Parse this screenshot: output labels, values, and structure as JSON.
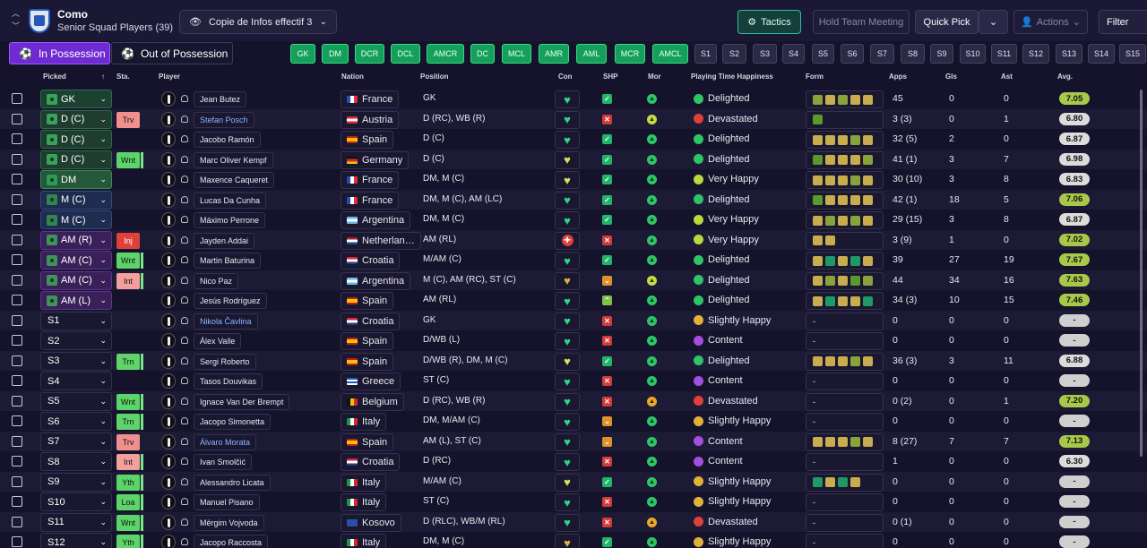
{
  "header": {
    "club": "Como",
    "subtitle": "Senior Squad Players (39)",
    "view": "Copie de Infos effectif 3",
    "tactics": "Tactics",
    "team_meeting": "Hold Team Meeting",
    "quick_pick": "Quick Pick",
    "actions": "Actions",
    "filter": "Filter"
  },
  "tabs": {
    "in": "In Possession",
    "out": "Out of Possession"
  },
  "pos_filters": [
    "GK",
    "DM",
    "DCR",
    "DCL",
    "AMCR",
    "DC",
    "MCL",
    "AMR",
    "AML",
    "MCR",
    "AMCL"
  ],
  "sub_filters": [
    "S1",
    "S2",
    "S3",
    "S4",
    "S5",
    "S6",
    "S7",
    "S8",
    "S9",
    "S10",
    "S11",
    "S12",
    "S13",
    "S14",
    "S15"
  ],
  "columns": {
    "picked": "Picked",
    "sta": "Sta.",
    "player": "Player",
    "nation": "Nation",
    "position": "Position",
    "con": "Con",
    "shp": "SHP",
    "mor": "Mor",
    "pth": "Playing Time Happiness",
    "form": "Form",
    "apps": "Apps",
    "gls": "Gls",
    "ast": "Ast",
    "avg": "Avg."
  },
  "players": [
    {
      "picked": "GK",
      "ptype": "gk",
      "sta": "",
      "name": "Jean Butez",
      "link": false,
      "nation": "France",
      "flag": "fr",
      "position": "GK",
      "con": "g",
      "shp": "ok",
      "mor": "g",
      "happy": "Delighted",
      "hic": "delighted",
      "form": "babaa",
      "apps": "45",
      "gls": "0",
      "ast": "0",
      "avg": "7.05",
      "avgc": "hi"
    },
    {
      "picked": "D (C)",
      "ptype": "def",
      "sta": "Trv",
      "stc": "trv",
      "name": "Stefan Posch",
      "link": true,
      "nation": "Austria",
      "flag": "at",
      "position": "D (RC), WB (R)",
      "con": "g",
      "shp": "bad",
      "mor": "y",
      "happy": "Devastated",
      "hic": "devastated",
      "form": "c",
      "apps": "3 (3)",
      "gls": "0",
      "ast": "1",
      "avg": "6.80",
      "avgc": "lo"
    },
    {
      "picked": "D (C)",
      "ptype": "def",
      "sta": "",
      "name": "Jacobo Ramón",
      "link": false,
      "nation": "Spain",
      "flag": "es",
      "position": "D (C)",
      "con": "g",
      "shp": "ok",
      "mor": "g",
      "happy": "Delighted",
      "hic": "delighted",
      "form": "aaaba",
      "apps": "32 (5)",
      "gls": "2",
      "ast": "0",
      "avg": "6.87",
      "avgc": "lo"
    },
    {
      "picked": "D (C)",
      "ptype": "def",
      "sta": "Wnt",
      "stc": "wnt",
      "name": "Marc Oliver Kempf",
      "link": false,
      "nation": "Germany",
      "flag": "de",
      "position": "D (C)",
      "con": "y",
      "shp": "ok",
      "mor": "g",
      "happy": "Delighted",
      "hic": "delighted",
      "form": "caaab",
      "apps": "41 (1)",
      "gls": "3",
      "ast": "7",
      "avg": "6.98",
      "avgc": "lo"
    },
    {
      "picked": "DM",
      "ptype": "dm",
      "sta": "",
      "name": "Maxence Caqueret",
      "link": false,
      "nation": "France",
      "flag": "fr",
      "position": "DM, M (C)",
      "con": "y",
      "shp": "ok",
      "mor": "g",
      "happy": "Very Happy",
      "hic": "veryhappy",
      "form": "aaaba",
      "apps": "30 (10)",
      "gls": "3",
      "ast": "8",
      "avg": "6.83",
      "avgc": "lo"
    },
    {
      "picked": "M (C)",
      "ptype": "mid",
      "sta": "",
      "name": "Lucas Da Cunha",
      "link": false,
      "nation": "France",
      "flag": "fr",
      "position": "DM, M (C), AM (LC)",
      "con": "g",
      "shp": "ok",
      "mor": "g",
      "happy": "Delighted",
      "hic": "delighted",
      "form": "caaaa",
      "apps": "42 (1)",
      "gls": "18",
      "ast": "5",
      "avg": "7.06",
      "avgc": "hi"
    },
    {
      "picked": "M (C)",
      "ptype": "mid",
      "sta": "",
      "name": "Máximo Perrone",
      "link": false,
      "nation": "Argentina",
      "flag": "ar",
      "position": "DM, M (C)",
      "con": "g",
      "shp": "ok",
      "mor": "g",
      "happy": "Very Happy",
      "hic": "veryhappy",
      "form": "ababa",
      "apps": "29 (15)",
      "gls": "3",
      "ast": "8",
      "avg": "6.87",
      "avgc": "lo"
    },
    {
      "picked": "AM (R)",
      "ptype": "am",
      "sta": "Inj",
      "stc": "inj",
      "name": "Jayden Addai",
      "link": false,
      "nation": "Netherlan…",
      "flag": "nl",
      "position": "AM (RL)",
      "con": "r",
      "shp": "bad",
      "mor": "g",
      "happy": "Very Happy",
      "hic": "veryhappy",
      "form": "aa",
      "apps": "3 (9)",
      "gls": "1",
      "ast": "0",
      "avg": "7.02",
      "avgc": "hi"
    },
    {
      "picked": "AM (C)",
      "ptype": "am",
      "sta": "Wnt",
      "stc": "wnt",
      "name": "Martin Baturina",
      "link": false,
      "nation": "Croatia",
      "flag": "hr",
      "position": "M/AM (C)",
      "con": "g",
      "shp": "ok",
      "mor": "g",
      "happy": "Delighted",
      "hic": "delighted",
      "form": "adada",
      "apps": "39",
      "gls": "27",
      "ast": "19",
      "avg": "7.67",
      "avgc": "hi"
    },
    {
      "picked": "AM (C)",
      "ptype": "am",
      "sta": "Int",
      "stc": "int",
      "name": "Nico Paz",
      "link": false,
      "nation": "Argentina",
      "flag": "ar",
      "position": "M (C), AM (RC), ST (C)",
      "con": "w",
      "shp": "mid",
      "mor": "y",
      "happy": "Delighted",
      "hic": "delighted",
      "form": "abacb",
      "apps": "44",
      "gls": "34",
      "ast": "16",
      "avg": "7.63",
      "avgc": "hi"
    },
    {
      "picked": "AM (L)",
      "ptype": "am",
      "sta": "",
      "name": "Jesús Rodríguez",
      "link": false,
      "nation": "Spain",
      "flag": "es",
      "position": "AM (RL)",
      "con": "g",
      "shp": "up",
      "mor": "g",
      "happy": "Delighted",
      "hic": "delighted",
      "form": "adaad",
      "apps": "34 (3)",
      "gls": "10",
      "ast": "15",
      "avg": "7.46",
      "avgc": "hi"
    },
    {
      "picked": "S1",
      "ptype": "sub",
      "sta": "",
      "name": "Nikola Čavlina",
      "link": true,
      "nation": "Croatia",
      "flag": "hr",
      "position": "GK",
      "con": "g",
      "shp": "bad",
      "mor": "g",
      "happy": "Slightly Happy",
      "hic": "slightly",
      "form": "-",
      "apps": "0",
      "gls": "0",
      "ast": "0",
      "avg": "-",
      "avgc": "na"
    },
    {
      "picked": "S2",
      "ptype": "sub",
      "sta": "",
      "name": "Álex Valle",
      "link": false,
      "nation": "Spain",
      "flag": "es",
      "position": "D/WB (L)",
      "con": "g",
      "shp": "bad",
      "mor": "g",
      "happy": "Content",
      "hic": "content",
      "form": "-",
      "apps": "0",
      "gls": "0",
      "ast": "0",
      "avg": "-",
      "avgc": "na"
    },
    {
      "picked": "S3",
      "ptype": "sub",
      "sta": "Trn",
      "stc": "trn",
      "name": "Sergi Roberto",
      "link": false,
      "nation": "Spain",
      "flag": "es",
      "position": "D/WB (R), DM, M (C)",
      "con": "y",
      "shp": "ok",
      "mor": "g",
      "happy": "Delighted",
      "hic": "delighted",
      "form": "aaaba",
      "apps": "36 (3)",
      "gls": "3",
      "ast": "11",
      "avg": "6.88",
      "avgc": "lo"
    },
    {
      "picked": "S4",
      "ptype": "sub",
      "sta": "",
      "name": "Tasos Douvikas",
      "link": false,
      "nation": "Greece",
      "flag": "gr",
      "position": "ST (C)",
      "con": "g",
      "shp": "bad",
      "mor": "g",
      "happy": "Content",
      "hic": "content",
      "form": "-",
      "apps": "0",
      "gls": "0",
      "ast": "0",
      "avg": "-",
      "avgc": "na"
    },
    {
      "picked": "S5",
      "ptype": "sub",
      "sta": "Wnt",
      "stc": "wnt",
      "name": "Ignace Van Der Brempt",
      "link": false,
      "nation": "Belgium",
      "flag": "be",
      "position": "D (RC), WB (R)",
      "con": "g",
      "shp": "bad",
      "mor": "o",
      "happy": "Devastated",
      "hic": "devastated",
      "form": "-",
      "apps": "0 (2)",
      "gls": "0",
      "ast": "1",
      "avg": "7.20",
      "avgc": "hi"
    },
    {
      "picked": "S6",
      "ptype": "sub",
      "sta": "Trn",
      "stc": "trn",
      "name": "Jacopo Simonetta",
      "link": false,
      "nation": "Italy",
      "flag": "it",
      "position": "DM, M/AM (C)",
      "con": "g",
      "shp": "mid",
      "mor": "g",
      "happy": "Slightly Happy",
      "hic": "slightly",
      "form": "-",
      "apps": "0",
      "gls": "0",
      "ast": "0",
      "avg": "-",
      "avgc": "na"
    },
    {
      "picked": "S7",
      "ptype": "sub",
      "sta": "Trv",
      "stc": "trv",
      "name": "Álvaro Morata",
      "link": true,
      "nation": "Spain",
      "flag": "es",
      "position": "AM (L), ST (C)",
      "con": "g",
      "shp": "mid",
      "mor": "g",
      "happy": "Content",
      "hic": "content",
      "form": "aaaba",
      "apps": "8 (27)",
      "gls": "7",
      "ast": "7",
      "avg": "7.13",
      "avgc": "hi"
    },
    {
      "picked": "S8",
      "ptype": "sub",
      "sta": "Int",
      "stc": "int",
      "name": "Ivan Smolčić",
      "link": false,
      "nation": "Croatia",
      "flag": "hr",
      "position": "D (RC)",
      "con": "g",
      "shp": "bad",
      "mor": "g",
      "happy": "Content",
      "hic": "content",
      "form": "-",
      "apps": "1",
      "gls": "0",
      "ast": "0",
      "avg": "6.30",
      "avgc": "lo"
    },
    {
      "picked": "S9",
      "ptype": "sub",
      "sta": "Yth",
      "stc": "yth",
      "name": "Alessandro Licata",
      "link": false,
      "nation": "Italy",
      "flag": "it",
      "position": "M/AM (C)",
      "con": "y",
      "shp": "ok",
      "mor": "g",
      "happy": "Slightly Happy",
      "hic": "slightly",
      "form": "dada",
      "apps": "0",
      "gls": "0",
      "ast": "0",
      "avg": "-",
      "avgc": "na"
    },
    {
      "picked": "S10",
      "ptype": "sub",
      "sta": "Loa",
      "stc": "loa",
      "name": "Manuel Pisano",
      "link": false,
      "nation": "Italy",
      "flag": "it",
      "position": "ST (C)",
      "con": "g",
      "shp": "bad",
      "mor": "g",
      "happy": "Slightly Happy",
      "hic": "slightly",
      "form": "-",
      "apps": "0",
      "gls": "0",
      "ast": "0",
      "avg": "-",
      "avgc": "na"
    },
    {
      "picked": "S11",
      "ptype": "sub",
      "sta": "Wnt",
      "stc": "wnt",
      "name": "Mërgim Vojvoda",
      "link": false,
      "nation": "Kosovo",
      "flag": "xk",
      "position": "D (RLC), WB/M (RL)",
      "con": "g",
      "shp": "bad",
      "mor": "o",
      "happy": "Devastated",
      "hic": "devastated",
      "form": "-",
      "apps": "0 (1)",
      "gls": "0",
      "ast": "0",
      "avg": "-",
      "avgc": "na"
    },
    {
      "picked": "S12",
      "ptype": "sub",
      "sta": "Yth",
      "stc": "yth",
      "name": "Jacopo Raccosta",
      "link": false,
      "nation": "Italy",
      "flag": "it",
      "position": "DM, M (C)",
      "con": "w",
      "shp": "ok",
      "mor": "g",
      "happy": "Slightly Happy",
      "hic": "slightly",
      "form": "-",
      "apps": "0",
      "gls": "0",
      "ast": "0",
      "avg": "-",
      "avgc": "na"
    }
  ]
}
